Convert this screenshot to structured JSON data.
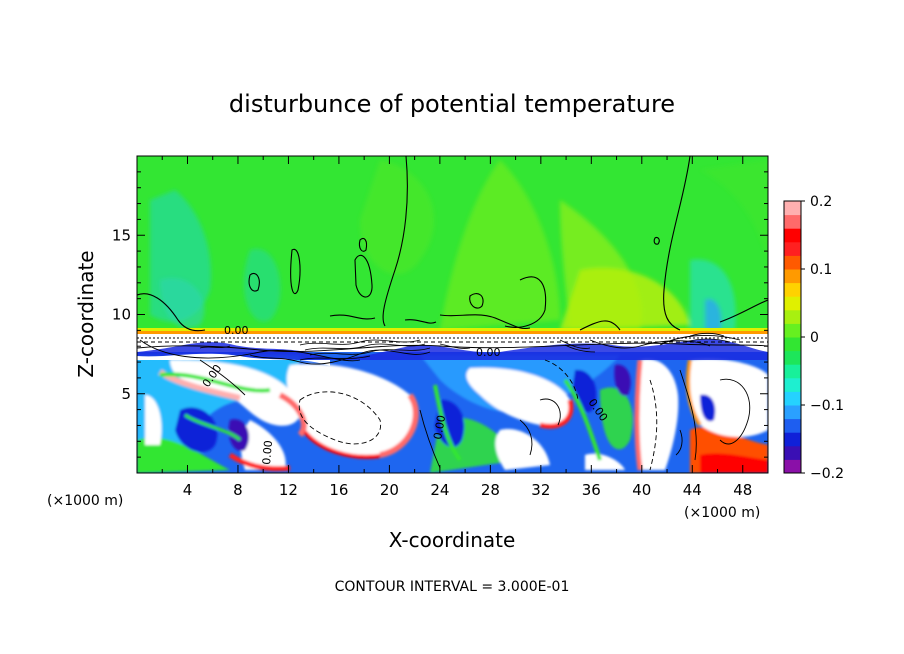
{
  "chart_data": {
    "type": "heatmap",
    "title": "disturbunce of potential temperature",
    "xlabel": "X-coordinate",
    "ylabel": "Z-coordinate",
    "x_unit": "(×1000 m)",
    "xlim": [
      0,
      50
    ],
    "ylim": [
      0,
      20
    ],
    "x_ticks": [
      4,
      8,
      12,
      16,
      20,
      24,
      28,
      32,
      36,
      40,
      44,
      48
    ],
    "y_ticks": [
      5,
      10,
      15
    ],
    "colorbar": {
      "range": [
        -0.2,
        0.2
      ],
      "tick_values": [
        0.2,
        0.1,
        0,
        -0.1,
        -0.2
      ],
      "tick_labels": [
        "0.2",
        "0.1",
        "0",
        "−0.1",
        "−0.2"
      ],
      "colors": [
        "#8a10a8",
        "#3a0fb4",
        "#1020d8",
        "#1e5ef0",
        "#2aa0ff",
        "#25d2ff",
        "#1eefd0",
        "#18f09a",
        "#1de65a",
        "#32e632",
        "#66f020",
        "#a8f010",
        "#e0f000",
        "#ffd200",
        "#ff9a00",
        "#ff5a00",
        "#ff2020",
        "#ff0000",
        "#ff6a6a",
        "#ffb0b0"
      ]
    },
    "contour_labels": [
      "0.00"
    ],
    "footer": "CONTOUR INTERVAL = 3.000E-01"
  }
}
